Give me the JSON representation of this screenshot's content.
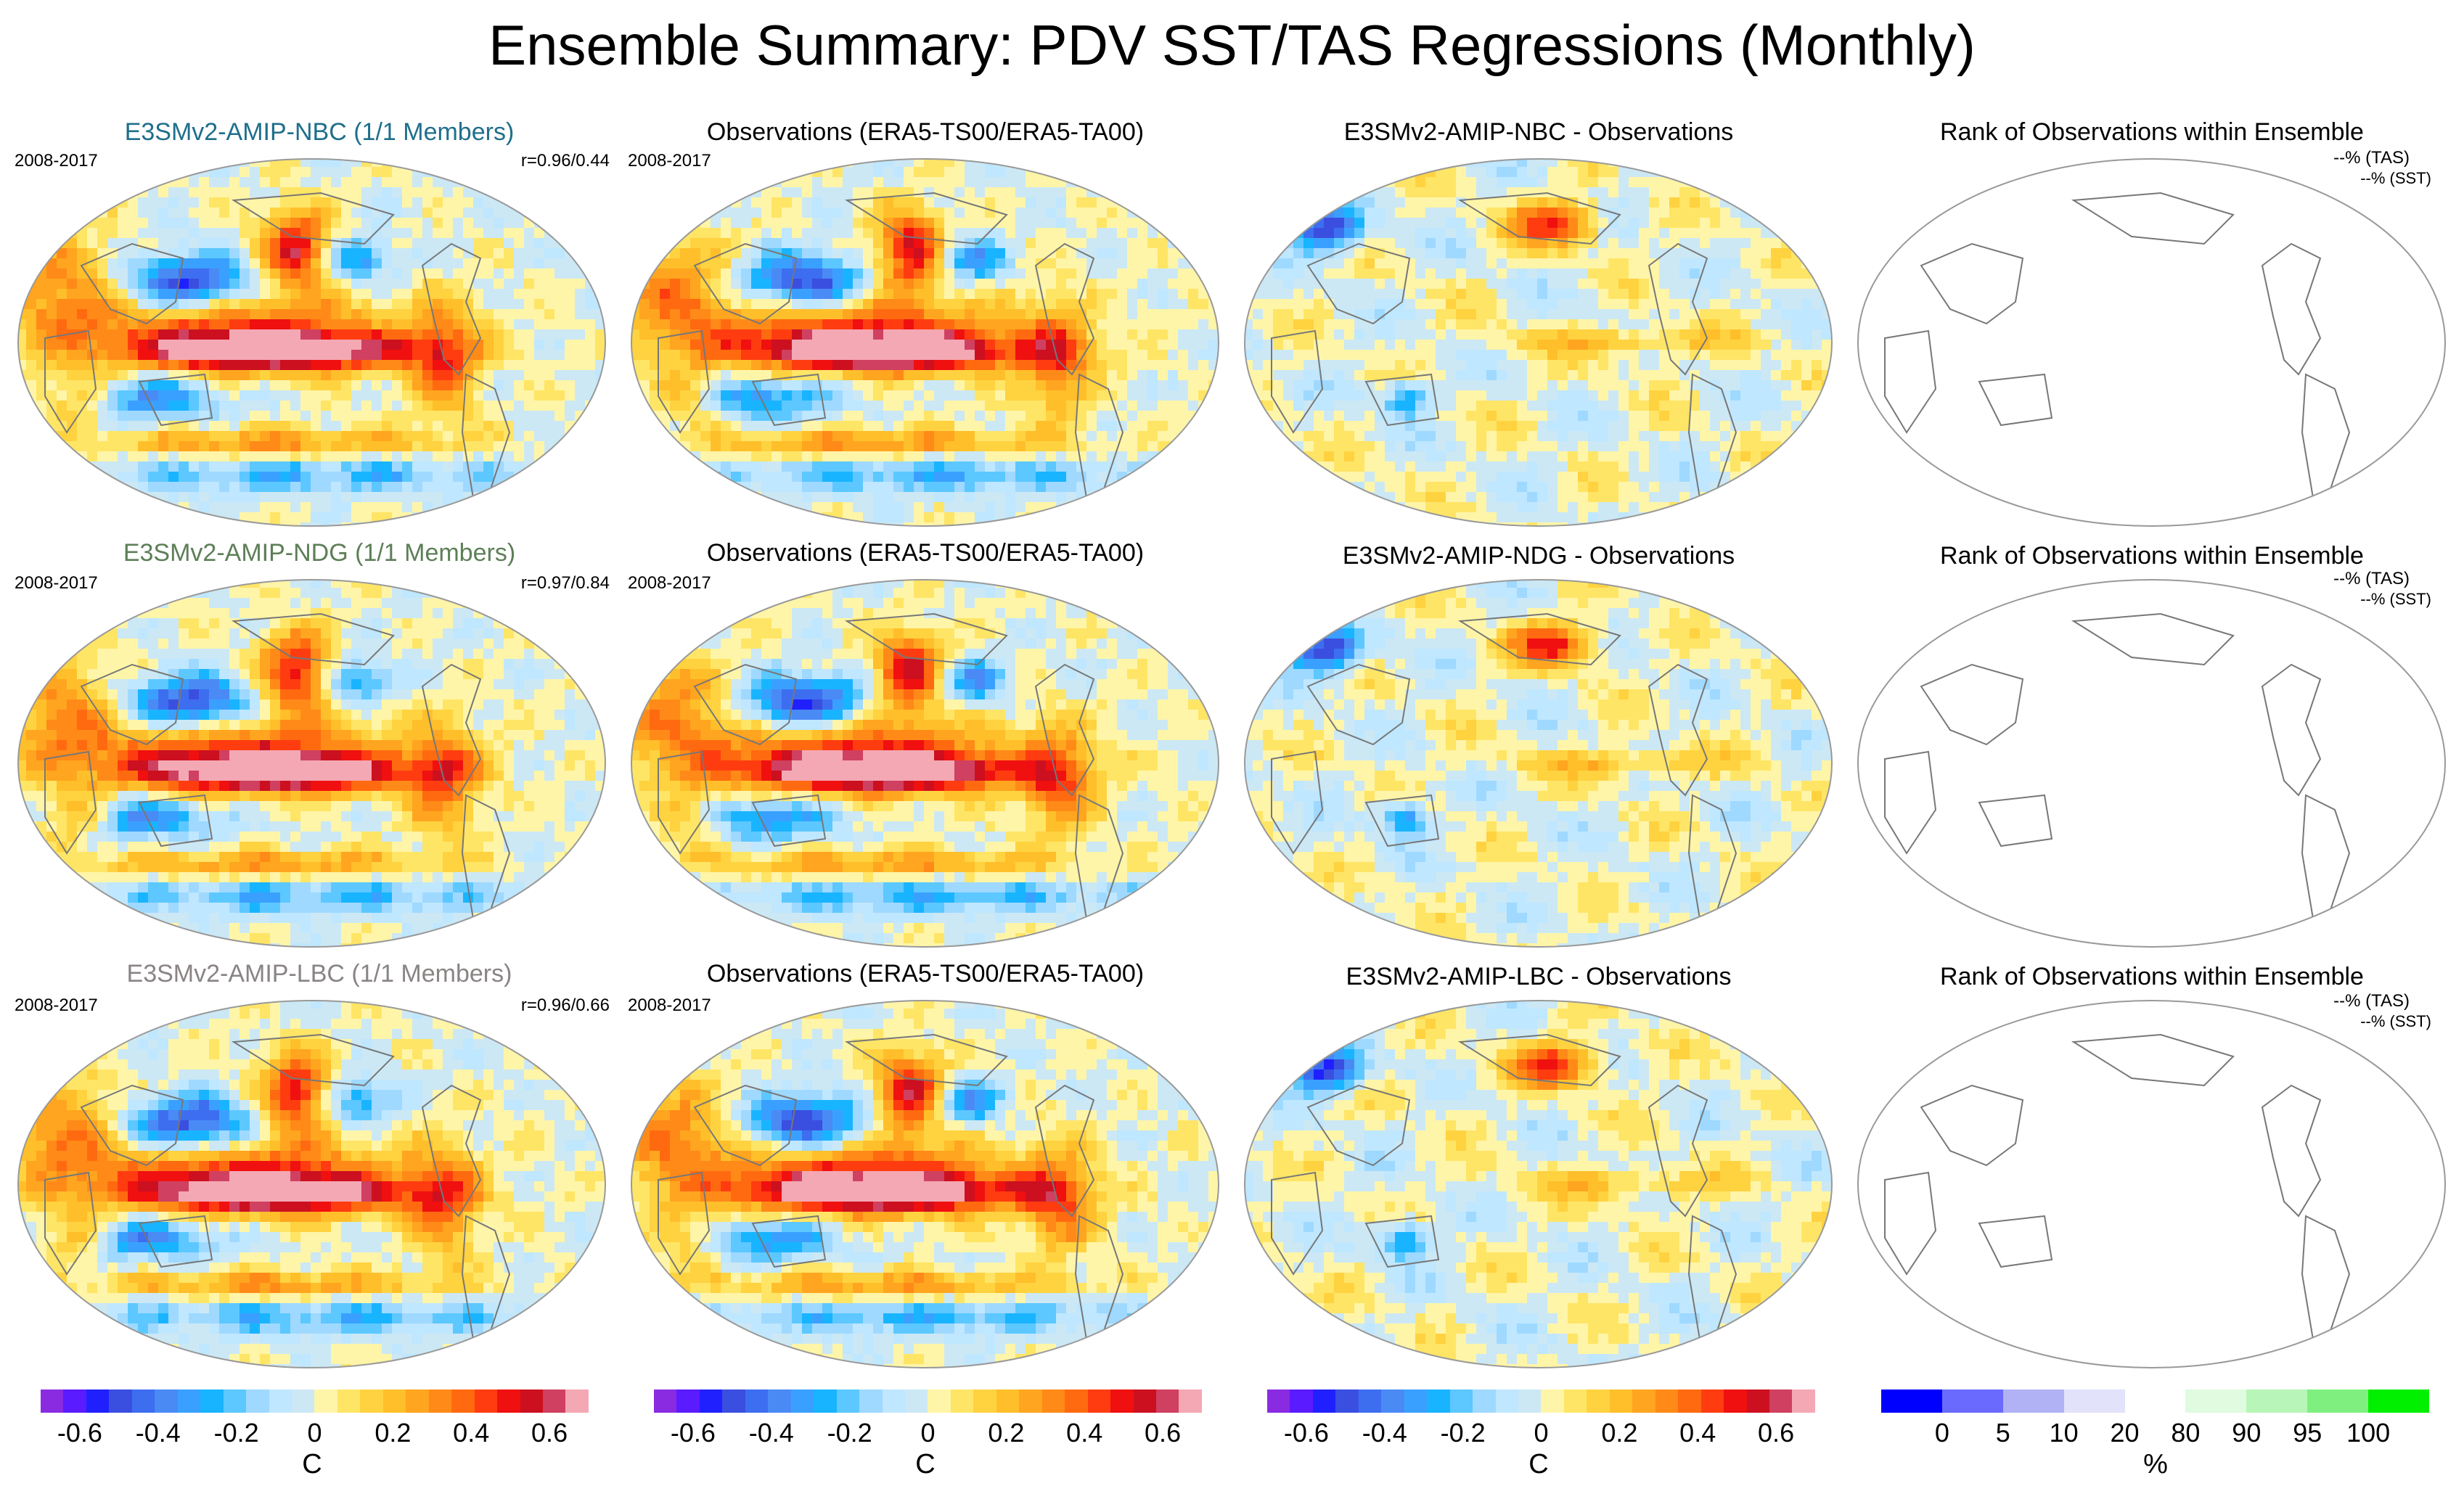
{
  "title": "Ensemble Summary: PDV SST/TAS Regressions (Monthly)",
  "period": "2008-2017",
  "rows": [
    {
      "model_title": "E3SMv2-AMIP-NBC (1/1 Members)",
      "model_title_color": "#1f6f8b",
      "correlation": "r=0.96/0.44",
      "obs_title": "Observations (ERA5-TS00/ERA5-TA00)",
      "diff_title": "E3SMv2-AMIP-NBC - Observations",
      "rank_title": "Rank of Observations within Ensemble",
      "rank_tas": "--% (TAS)",
      "rank_sst": "--% (SST)"
    },
    {
      "model_title": "E3SMv2-AMIP-NDG (1/1 Members)",
      "model_title_color": "#5d7f57",
      "correlation": "r=0.97/0.84",
      "obs_title": "Observations (ERA5-TS00/ERA5-TA00)",
      "diff_title": "E3SMv2-AMIP-NDG - Observations",
      "rank_title": "Rank of Observations within Ensemble",
      "rank_tas": "--% (TAS)",
      "rank_sst": "--% (SST)"
    },
    {
      "model_title": "E3SMv2-AMIP-LBC (1/1 Members)",
      "model_title_color": "#8a8484",
      "correlation": "r=0.96/0.66",
      "obs_title": "Observations (ERA5-TS00/ERA5-TA00)",
      "diff_title": "E3SMv2-AMIP-LBC - Observations",
      "rank_title": "Rank of Observations within Ensemble",
      "rank_tas": "--% (TAS)",
      "rank_sst": "--% (SST)"
    }
  ],
  "colorbars": {
    "regression": {
      "unit": "C",
      "ticks": [
        "-0.6",
        "-0.4",
        "-0.2",
        "0",
        "0.2",
        "0.4",
        "0.6"
      ],
      "tick_values": [
        -0.6,
        -0.4,
        -0.2,
        0,
        0.2,
        0.4,
        0.6
      ],
      "range": [
        -0.7,
        0.7
      ],
      "colors": [
        "#8a2be2",
        "#5b1bff",
        "#2020ff",
        "#3a4fe0",
        "#3d6ef0",
        "#4a8af5",
        "#3aa0ff",
        "#19b4ff",
        "#5cc8ff",
        "#9fd9ff",
        "#bfe7ff",
        "#cce8f5",
        "#fff5a8",
        "#ffe566",
        "#ffd240",
        "#ffbf2a",
        "#ffa51f",
        "#ff8a18",
        "#ff6a10",
        "#ff3c10",
        "#f01010",
        "#cc1020",
        "#d04060",
        "#f4a8b4"
      ]
    },
    "rank": {
      "unit": "%",
      "ticks": [
        "0",
        "5",
        "10",
        "20",
        "80",
        "90",
        "95",
        "100"
      ],
      "tick_values": [
        0,
        5,
        10,
        20,
        80,
        90,
        95,
        100
      ],
      "colors": [
        "#0000ff",
        "#6a6aff",
        "#b1b1f5",
        "#e2e2fa",
        "#ffffff",
        "#e0fbe0",
        "#b8f5b8",
        "#7ff07f",
        "#00f000"
      ]
    }
  },
  "chart_data": {
    "type": "heatmap",
    "title": "Ensemble Summary: PDV SST/TAS Regressions (Monthly)",
    "panels": [
      {
        "row": 1,
        "col": 1,
        "title": "E3SMv2-AMIP-NBC (1/1 Members)",
        "period": "2008-2017",
        "pattern_correlation": [
          0.96,
          0.44
        ]
      },
      {
        "row": 1,
        "col": 2,
        "title": "Observations (ERA5-TS00/ERA5-TA00)",
        "period": "2008-2017"
      },
      {
        "row": 1,
        "col": 3,
        "title": "E3SMv2-AMIP-NBC - Observations"
      },
      {
        "row": 1,
        "col": 4,
        "title": "Rank of Observations within Ensemble",
        "tas": "--%",
        "sst": "--%"
      },
      {
        "row": 2,
        "col": 1,
        "title": "E3SMv2-AMIP-NDG (1/1 Members)",
        "period": "2008-2017",
        "pattern_correlation": [
          0.97,
          0.84
        ]
      },
      {
        "row": 2,
        "col": 2,
        "title": "Observations (ERA5-TS00/ERA5-TA00)",
        "period": "2008-2017"
      },
      {
        "row": 2,
        "col": 3,
        "title": "E3SMv2-AMIP-NDG - Observations"
      },
      {
        "row": 2,
        "col": 4,
        "title": "Rank of Observations within Ensemble",
        "tas": "--%",
        "sst": "--%"
      },
      {
        "row": 3,
        "col": 1,
        "title": "E3SMv2-AMIP-LBC (1/1 Members)",
        "period": "2008-2017",
        "pattern_correlation": [
          0.96,
          0.66
        ]
      },
      {
        "row": 3,
        "col": 2,
        "title": "Observations (ERA5-TS00/ERA5-TA00)",
        "period": "2008-2017"
      },
      {
        "row": 3,
        "col": 3,
        "title": "E3SMv2-AMIP-LBC - Observations"
      },
      {
        "row": 3,
        "col": 4,
        "title": "Rank of Observations within Ensemble",
        "tas": "--%",
        "sst": "--%"
      }
    ],
    "colorbar_regression": {
      "label": "C",
      "ticks": [
        -0.6,
        -0.4,
        -0.2,
        0,
        0.2,
        0.4,
        0.6
      ]
    },
    "colorbar_rank": {
      "label": "%",
      "ticks": [
        0,
        5,
        10,
        20,
        80,
        90,
        95,
        100
      ]
    }
  }
}
